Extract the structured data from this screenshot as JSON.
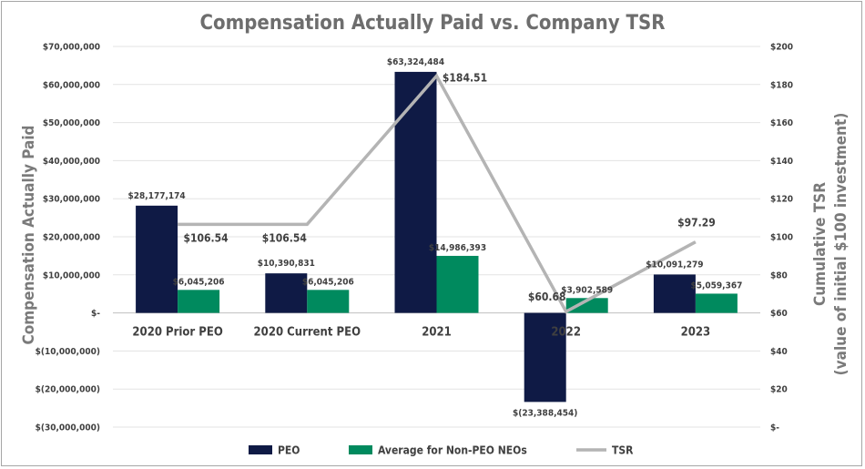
{
  "chart_data": {
    "type": "bar",
    "title": "Compensation Actually Paid vs. Company TSR",
    "ylabel": "Compensation Actually Paid",
    "y2label_line1": "Cumulative TSR",
    "y2label_line2": "(value of initial $100 investment)",
    "categories": [
      "2020 Prior PEO",
      "2020 Current PEO",
      "2021",
      "2022",
      "2023"
    ],
    "ylim": [
      -30000000,
      70000000
    ],
    "y2lim": [
      0,
      200
    ],
    "y_ticks": [
      70000000,
      60000000,
      50000000,
      40000000,
      30000000,
      20000000,
      10000000,
      0,
      -10000000,
      -20000000,
      -30000000
    ],
    "y_tick_labels": [
      "$70,000,000",
      "$60,000,000",
      "$50,000,000",
      "$40,000,000",
      "$30,000,000",
      "$20,000,000",
      "$10,000,000",
      "$-",
      "$(10,000,000)",
      "$(20,000,000)",
      "$(30,000,000)"
    ],
    "y2_ticks": [
      200,
      180,
      160,
      140,
      120,
      100,
      80,
      60,
      40,
      20,
      0
    ],
    "y2_tick_labels": [
      "$200",
      "$180",
      "$160",
      "$140",
      "$120",
      "$100",
      "$80",
      "$60",
      "$40",
      "$20",
      "$-"
    ],
    "series": [
      {
        "name": "PEO",
        "type": "bar",
        "axis": "left",
        "color": "#0f1a45",
        "values": [
          28177174,
          10390831,
          63324484,
          -23388454,
          10091279
        ],
        "labels": [
          "$28,177,174",
          "$10,390,831",
          "$63,324,484",
          "$(23,388,454)",
          "$10,091,279"
        ]
      },
      {
        "name": "Average for Non-PEO NEOs",
        "type": "bar",
        "axis": "left",
        "color": "#008a5e",
        "values": [
          6045206,
          6045206,
          14986393,
          3902589,
          5059367
        ],
        "labels": [
          "$6,045,206",
          "$6,045,206",
          "$14,986,393",
          "$3,902,589",
          "$5,059,367"
        ]
      },
      {
        "name": "TSR",
        "type": "line",
        "axis": "right",
        "color": "#b4b4b4",
        "values": [
          106.54,
          106.54,
          184.51,
          60.68,
          97.29
        ],
        "labels": [
          "$106.54",
          "$106.54",
          "$184.51",
          "$60.68",
          "$97.29"
        ]
      }
    ],
    "grid": true,
    "legend_position": "bottom"
  }
}
